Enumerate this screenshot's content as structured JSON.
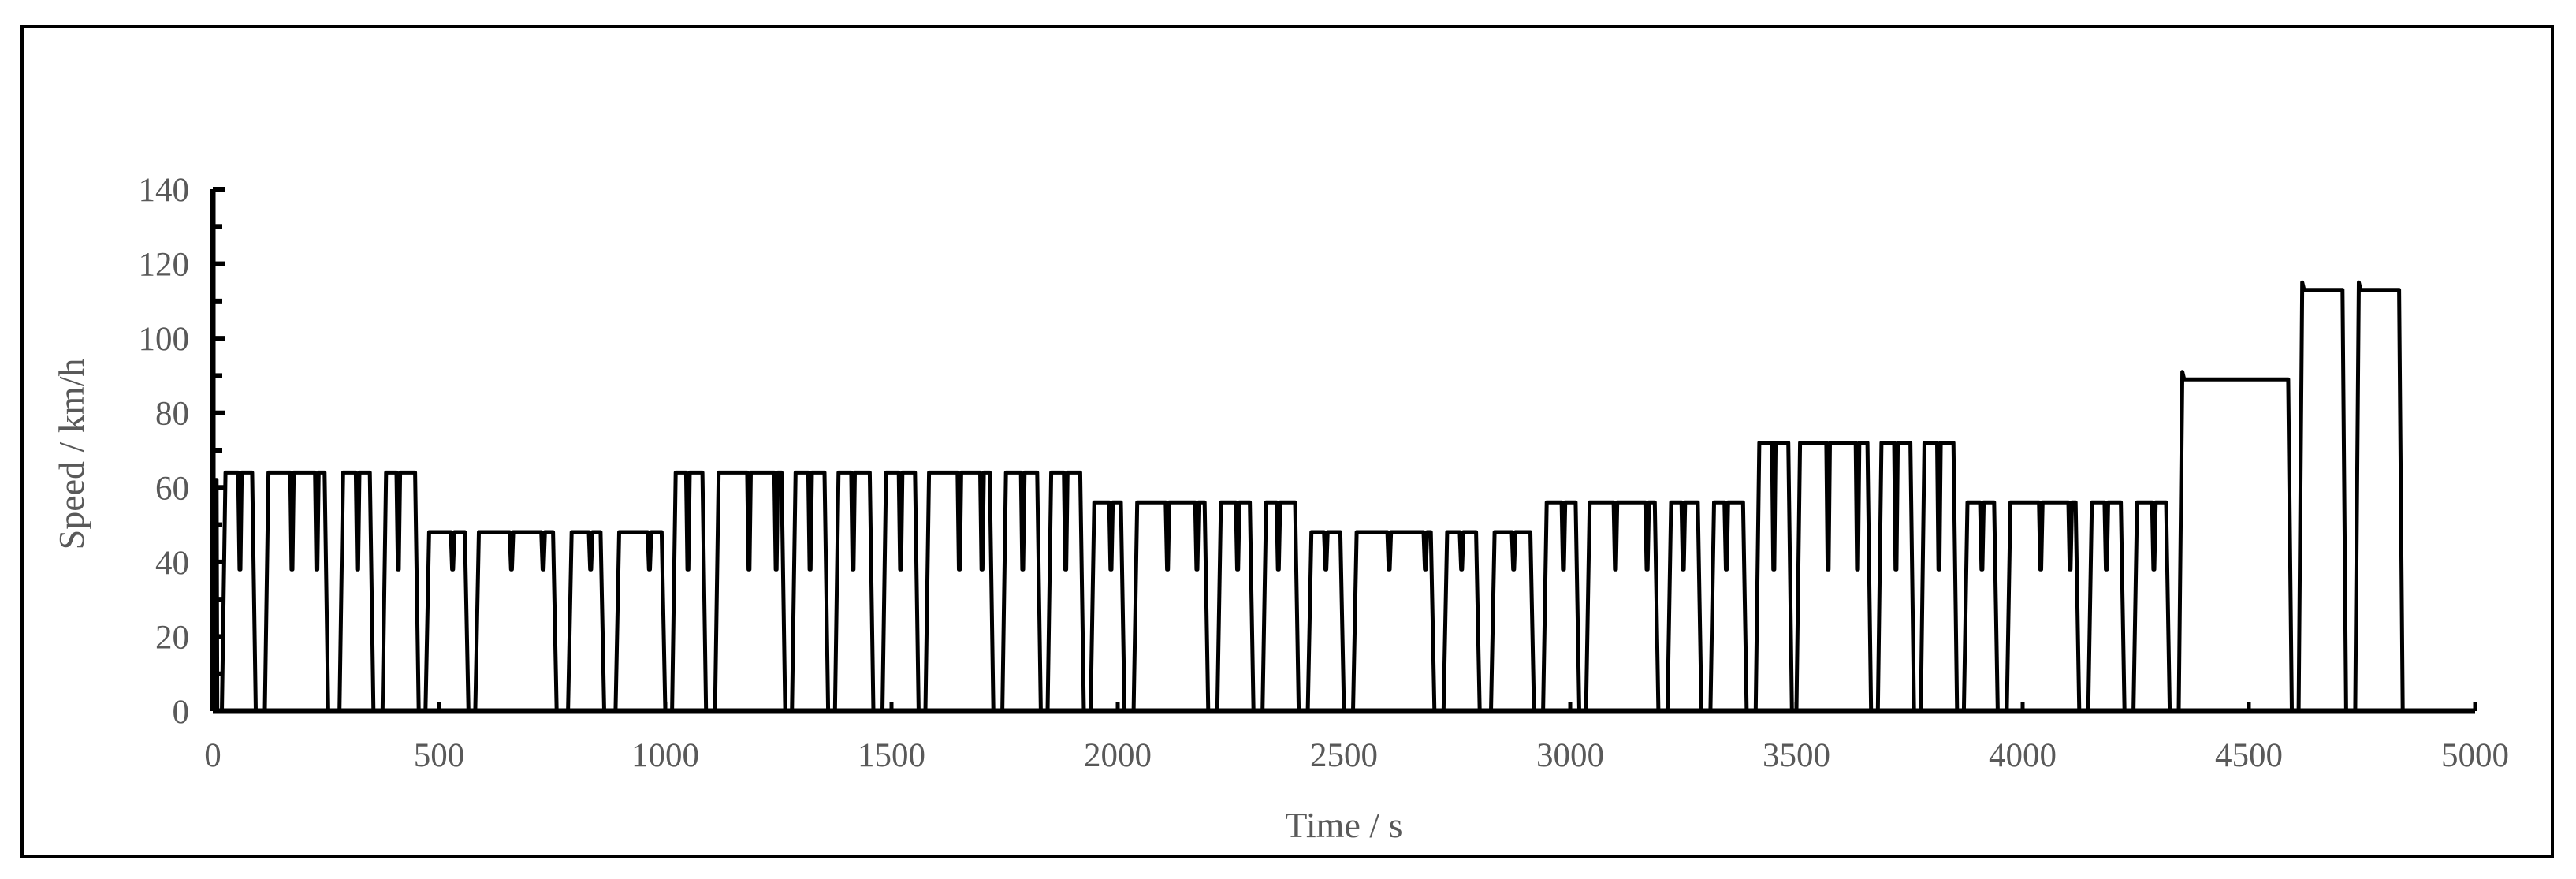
{
  "chart_data": {
    "type": "line",
    "title": "",
    "xlabel": "Time / s",
    "ylabel": "Speed / km/h",
    "xlim": [
      0,
      5000
    ],
    "ylim": [
      0,
      140
    ],
    "x_ticks": [
      0,
      500,
      1000,
      1500,
      2000,
      2500,
      3000,
      3500,
      4000,
      4500,
      5000
    ],
    "y_ticks": [
      0,
      20,
      40,
      60,
      80,
      100,
      120,
      140
    ],
    "grid": false,
    "legend": "none",
    "series": [
      {
        "color": "#000000",
        "trips": [
          {
            "start": 0,
            "end": 10,
            "cruise": 62,
            "dips": []
          },
          {
            "start": 20,
            "end": 95,
            "cruise": 64,
            "dips": [
              60
            ]
          },
          {
            "start": 115,
            "end": 255,
            "cruise": 64,
            "dips": [
              175,
              230
            ]
          },
          {
            "start": 280,
            "end": 355,
            "cruise": 64,
            "dips": [
              320
            ]
          },
          {
            "start": 375,
            "end": 455,
            "cruise": 64,
            "dips": [
              410
            ]
          },
          {
            "start": 470,
            "end": 565,
            "cruise": 48,
            "dips": [
              530
            ]
          },
          {
            "start": 580,
            "end": 760,
            "cruise": 48,
            "dips": [
              660,
              730
            ]
          },
          {
            "start": 785,
            "end": 865,
            "cruise": 48,
            "dips": [
              835
            ]
          },
          {
            "start": 890,
            "end": 1000,
            "cruise": 48,
            "dips": [
              965
            ]
          },
          {
            "start": 1015,
            "end": 1090,
            "cruise": 64,
            "dips": [
              1050
            ]
          },
          {
            "start": 1110,
            "end": 1265,
            "cruise": 64,
            "dips": [
              1185,
              1245
            ]
          },
          {
            "start": 1280,
            "end": 1360,
            "cruise": 64,
            "dips": [
              1320
            ]
          },
          {
            "start": 1375,
            "end": 1460,
            "cruise": 64,
            "dips": [
              1415
            ]
          },
          {
            "start": 1480,
            "end": 1560,
            "cruise": 64,
            "dips": [
              1520
            ]
          },
          {
            "start": 1575,
            "end": 1725,
            "cruise": 64,
            "dips": [
              1650,
              1700
            ]
          },
          {
            "start": 1745,
            "end": 1830,
            "cruise": 64,
            "dips": [
              1790
            ]
          },
          {
            "start": 1845,
            "end": 1925,
            "cruise": 64,
            "dips": [
              1885
            ]
          },
          {
            "start": 1940,
            "end": 2015,
            "cruise": 56,
            "dips": [
              1985
            ]
          },
          {
            "start": 2035,
            "end": 2200,
            "cruise": 56,
            "dips": [
              2110,
              2175
            ]
          },
          {
            "start": 2220,
            "end": 2300,
            "cruise": 56,
            "dips": [
              2265
            ]
          },
          {
            "start": 2320,
            "end": 2400,
            "cruise": 56,
            "dips": [
              2355
            ]
          },
          {
            "start": 2420,
            "end": 2500,
            "cruise": 48,
            "dips": [
              2460
            ]
          },
          {
            "start": 2520,
            "end": 2700,
            "cruise": 48,
            "dips": [
              2600,
              2680
            ]
          },
          {
            "start": 2720,
            "end": 2800,
            "cruise": 48,
            "dips": [
              2760
            ]
          },
          {
            "start": 2825,
            "end": 2920,
            "cruise": 48,
            "dips": [
              2875
            ]
          },
          {
            "start": 2940,
            "end": 3020,
            "cruise": 56,
            "dips": [
              2985
            ]
          },
          {
            "start": 3035,
            "end": 3195,
            "cruise": 56,
            "dips": [
              3100,
              3170
            ]
          },
          {
            "start": 3215,
            "end": 3290,
            "cruise": 56,
            "dips": [
              3250
            ]
          },
          {
            "start": 3310,
            "end": 3390,
            "cruise": 56,
            "dips": [
              3345
            ]
          },
          {
            "start": 3410,
            "end": 3490,
            "cruise": 72,
            "dips": [
              3450
            ]
          },
          {
            "start": 3500,
            "end": 3665,
            "cruise": 72,
            "dips": [
              3570,
              3635
            ]
          },
          {
            "start": 3680,
            "end": 3760,
            "cruise": 72,
            "dips": [
              3720
            ]
          },
          {
            "start": 3775,
            "end": 3855,
            "cruise": 72,
            "dips": [
              3815
            ]
          },
          {
            "start": 3870,
            "end": 3945,
            "cruise": 56,
            "dips": [
              3910
            ]
          },
          {
            "start": 3965,
            "end": 4125,
            "cruise": 56,
            "dips": [
              4040,
              4105
            ]
          },
          {
            "start": 4145,
            "end": 4225,
            "cruise": 56,
            "dips": [
              4185
            ]
          },
          {
            "start": 4245,
            "end": 4325,
            "cruise": 56,
            "dips": [
              4290
            ]
          },
          {
            "start": 4345,
            "end": 4595,
            "cruise": 89,
            "dips": []
          },
          {
            "start": 4610,
            "end": 4715,
            "cruise": 113,
            "dips": []
          },
          {
            "start": 4735,
            "end": 4840,
            "cruise": 113,
            "dips": []
          }
        ]
      }
    ]
  }
}
